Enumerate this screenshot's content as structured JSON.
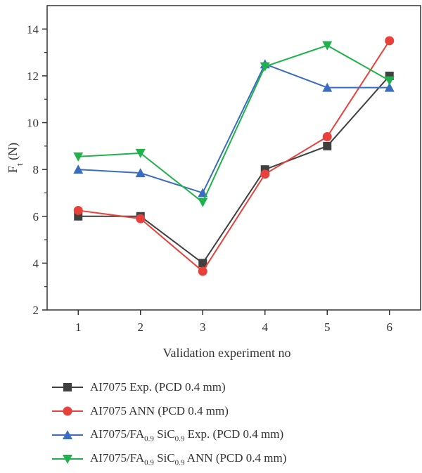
{
  "chart_data": {
    "type": "line",
    "x": [
      1,
      2,
      3,
      4,
      5,
      6
    ],
    "xlabel": "Validation experiment no",
    "ylabel_main": "F",
    "ylabel_sub": "t",
    "ylabel_unit": " (N)",
    "xlim": [
      0.5,
      6.5
    ],
    "ylim": [
      2,
      15
    ],
    "xticks": [
      1,
      2,
      3,
      4,
      5,
      6
    ],
    "yticks": [
      2,
      4,
      6,
      8,
      10,
      12,
      14
    ],
    "grid": false,
    "legend_position": "bottom",
    "series": [
      {
        "id": "s1",
        "name_parts": [
          {
            "t": "AI7075 Exp. (PCD 0.4 mm)"
          }
        ],
        "color": "#404040",
        "marker": "square",
        "values": [
          6.0,
          6.0,
          4.0,
          8.0,
          9.0,
          12.0
        ]
      },
      {
        "id": "s2",
        "name_parts": [
          {
            "t": "AI7075 ANN (PCD 0.4 mm)"
          }
        ],
        "color": "#e8413c",
        "marker": "circle",
        "values": [
          6.25,
          5.9,
          3.65,
          7.8,
          9.4,
          13.5
        ]
      },
      {
        "id": "s3",
        "name_parts": [
          {
            "t": "AI7075/FA"
          },
          {
            "t": "0.9",
            "sub": true
          },
          {
            "t": " SiC"
          },
          {
            "t": "0.9",
            "sub": true
          },
          {
            "t": " Exp. (PCD 0.4 mm)"
          }
        ],
        "color": "#3a6cc0",
        "marker": "triangle-up",
        "values": [
          8.0,
          7.85,
          7.0,
          12.5,
          11.5,
          11.5
        ]
      },
      {
        "id": "s4",
        "name_parts": [
          {
            "t": "AI7075/FA"
          },
          {
            "t": "0.9",
            "sub": true
          },
          {
            "t": " SiC"
          },
          {
            "t": "0.9",
            "sub": true
          },
          {
            "t": " ANN (PCD 0.4 mm)"
          }
        ],
        "color": "#1fb24a",
        "marker": "triangle-down",
        "values": [
          8.55,
          8.7,
          6.6,
          12.4,
          13.3,
          11.8
        ]
      }
    ]
  }
}
